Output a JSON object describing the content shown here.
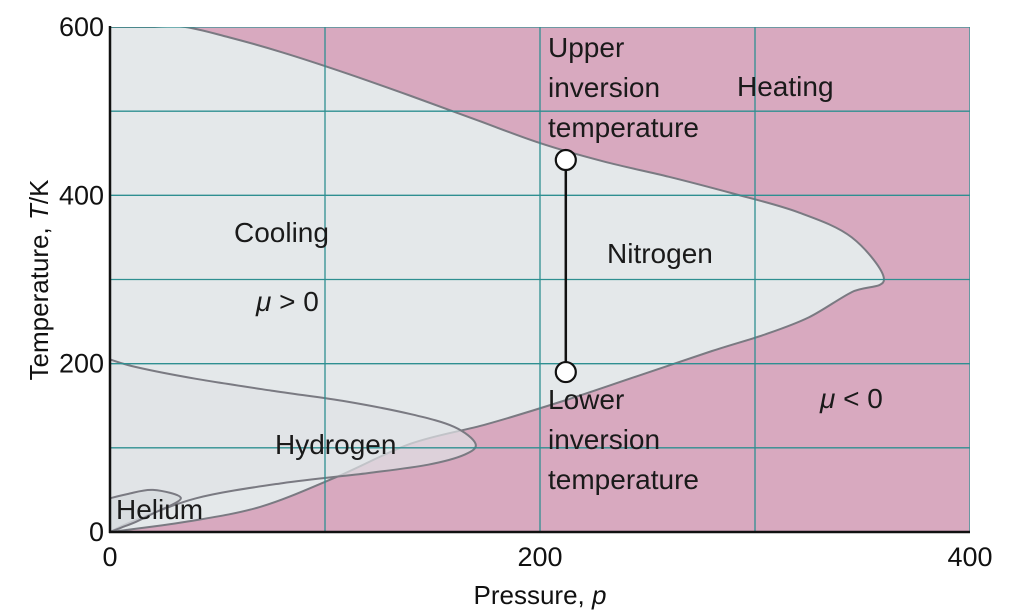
{
  "chart_data": {
    "type": "line",
    "title": "",
    "xlabel": {
      "text": "Pressure, ",
      "symbol": "p"
    },
    "ylabel": {
      "text": "Temperature, ",
      "symbol": "T",
      "unit": "/K"
    },
    "xlim": [
      0,
      400
    ],
    "ylim": [
      0,
      600
    ],
    "x_ticks": [
      0,
      200,
      400
    ],
    "y_ticks": [
      0,
      200,
      400,
      600
    ],
    "x_gridlines": [
      100,
      200,
      300
    ],
    "y_gridlines": [
      100,
      200,
      300,
      400,
      500
    ],
    "grid": true,
    "colors": {
      "heating_region": "#d8a9bf",
      "cooling_region": "#e4e8ea",
      "curve": "#7a7a82",
      "grid": "#2e8f91",
      "marker_line": "#111111"
    },
    "series": [
      {
        "name": "Nitrogen",
        "x": [
          0,
          35,
          70,
          105,
          140,
          175,
          210,
          245,
          280,
          305,
          325,
          345,
          360,
          345,
          320,
          290,
          260,
          230,
          200,
          170,
          140,
          110,
          80,
          55,
          35,
          20,
          10,
          4,
          0
        ],
        "y": [
          0,
          12,
          30,
          65,
          105,
          128,
          155,
          185,
          215,
          235,
          255,
          285,
          300,
          350,
          380,
          402,
          422,
          440,
          462,
          490,
          518,
          545,
          570,
          588,
          600,
          600,
          600,
          600,
          600
        ]
      },
      {
        "name": "Hydrogen",
        "x": [
          0,
          10,
          40,
          80,
          120,
          148,
          165,
          170,
          160,
          140,
          110,
          75,
          40,
          12,
          0
        ],
        "y": [
          0,
          12,
          40,
          58,
          70,
          80,
          92,
          105,
          125,
          140,
          155,
          168,
          182,
          196,
          205
        ]
      },
      {
        "name": "Helium",
        "x": [
          0,
          5,
          12,
          20,
          33,
          20,
          8,
          0
        ],
        "y": [
          0,
          5,
          12,
          22,
          40,
          50,
          45,
          40
        ]
      }
    ],
    "inversion_pressure": 212,
    "upper_inversion_temperature": 442,
    "lower_inversion_temperature": 190,
    "annotations": {
      "upper": [
        "Upper",
        "inversion",
        "temperature"
      ],
      "lower": [
        "Lower",
        "inversion",
        "temperature"
      ],
      "heating": "Heating",
      "cooling": "Cooling",
      "mu_positive": {
        "symbol": "μ",
        "relation": " > 0"
      },
      "mu_negative": {
        "symbol": "μ",
        "relation": " < 0"
      },
      "nitrogen": "Nitrogen",
      "hydrogen": "Hydrogen",
      "helium": "Helium"
    }
  }
}
